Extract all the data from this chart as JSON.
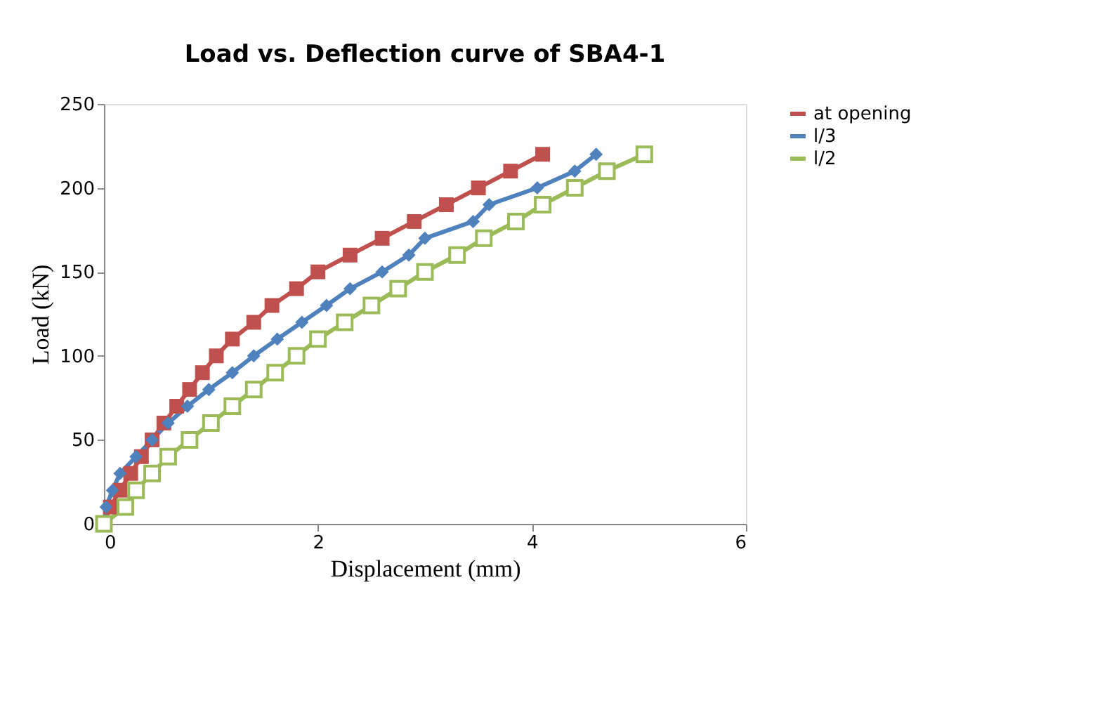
{
  "chart_data": {
    "type": "line",
    "title": "Load vs. Deflection curve of SBA4-1",
    "xlabel": "Displacement (mm)",
    "ylabel": "Load (kN)",
    "xlim": [
      0,
      6
    ],
    "xticks": [
      0,
      2,
      4,
      6
    ],
    "ylim": [
      0,
      250
    ],
    "yticks": [
      0,
      50,
      100,
      150,
      200,
      250
    ],
    "grid": false,
    "legend": "right",
    "series": [
      {
        "name": "at opening",
        "color": "#c0504d",
        "marker": "square",
        "x": [
          0,
          0.06,
          0.15,
          0.25,
          0.35,
          0.45,
          0.56,
          0.68,
          0.8,
          0.92,
          1.05,
          1.2,
          1.4,
          1.57,
          1.8,
          2.0,
          2.3,
          2.6,
          2.9,
          3.2,
          3.5,
          3.8,
          4.1
        ],
        "values": [
          0,
          10,
          20,
          30,
          40,
          50,
          60,
          70,
          80,
          90,
          100,
          110,
          120,
          130,
          140,
          150,
          160,
          170,
          180,
          190,
          200,
          210,
          220
        ]
      },
      {
        "name": "l/3",
        "color": "#4f81bd",
        "marker": "diamond",
        "x": [
          0,
          0.02,
          0.08,
          0.15,
          0.3,
          0.45,
          0.6,
          0.78,
          0.98,
          1.2,
          1.4,
          1.62,
          1.85,
          2.08,
          2.3,
          2.6,
          2.85,
          3.0,
          3.45,
          3.6,
          4.05,
          4.4,
          4.6
        ],
        "values": [
          0,
          10,
          20,
          30,
          40,
          50,
          60,
          70,
          80,
          90,
          100,
          110,
          120,
          130,
          140,
          150,
          160,
          170,
          180,
          190,
          200,
          210,
          220
        ]
      },
      {
        "name": "l/2",
        "color": "#9bbb59",
        "marker": "square",
        "x": [
          0,
          0.2,
          0.3,
          0.45,
          0.6,
          0.8,
          1.0,
          1.2,
          1.4,
          1.6,
          1.8,
          2.0,
          2.25,
          2.5,
          2.75,
          3.0,
          3.3,
          3.55,
          3.85,
          4.1,
          4.4,
          4.7,
          5.05
        ],
        "values": [
          0,
          10,
          20,
          30,
          40,
          50,
          60,
          70,
          80,
          90,
          100,
          110,
          120,
          130,
          140,
          150,
          160,
          170,
          180,
          190,
          200,
          210,
          220
        ]
      }
    ]
  }
}
